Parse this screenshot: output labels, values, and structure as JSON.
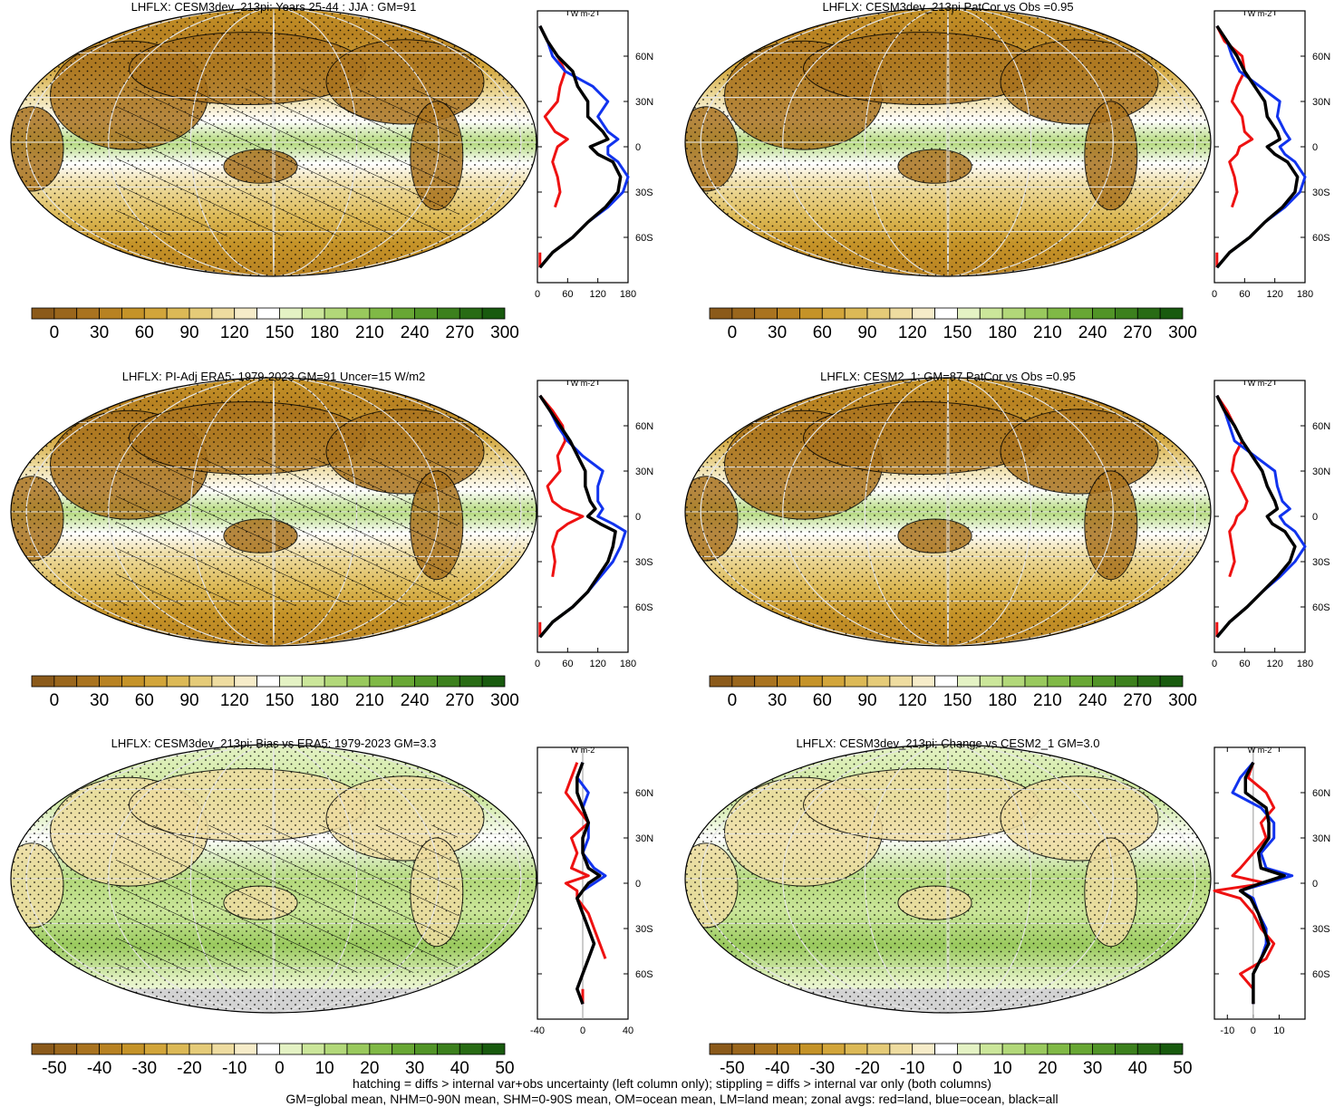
{
  "footer": {
    "line1": "hatching = diffs > internal var+obs uncertainty (left column only); stippling = diffs > internal var only (both columns)",
    "line2": "GM=global mean, NHM=0-90N mean, SHM=0-90S mean, OM=ocean mean, LM=land mean; zonal avgs: red=land, blue=ocean, black=all"
  },
  "colors": {
    "land_zonal": "#ee1111",
    "ocean_zonal": "#1133ee",
    "all_zonal": "#000000",
    "missing_land": "#d3d3d3"
  },
  "colorbars": {
    "abs": {
      "colors": [
        "#8b5a1a",
        "#9a661c",
        "#a9731f",
        "#b88222",
        "#c59328",
        "#d2a53a",
        "#dcb956",
        "#e5cb78",
        "#eedca0",
        "#f6ecc9",
        "#ffffff",
        "#e4f2c4",
        "#cbe69a",
        "#b2d879",
        "#99c95d",
        "#80b946",
        "#68a734",
        "#519427",
        "#3c801d",
        "#286b14",
        "#185a0e"
      ],
      "tick_labels": [
        "0",
        "30",
        "60",
        "90",
        "120",
        "150",
        "180",
        "210",
        "240",
        "270",
        "300"
      ]
    },
    "diff": {
      "colors": [
        "#8b5a1a",
        "#9a661c",
        "#a9731f",
        "#b88222",
        "#c59328",
        "#d2a53a",
        "#dcb956",
        "#e5cb78",
        "#eedca0",
        "#f6ecc9",
        "#ffffff",
        "#e4f2c4",
        "#cbe69a",
        "#b2d879",
        "#99c95d",
        "#80b946",
        "#68a734",
        "#519427",
        "#3c801d",
        "#286b14",
        "#185a0e"
      ],
      "tick_labels": [
        "-50",
        "-40",
        "-30",
        "-20",
        "-10",
        "0",
        "10",
        "20",
        "30",
        "40",
        "50"
      ]
    }
  },
  "chart_data": [
    {
      "type": "heatmap",
      "title": "LHFLX: CESM3dev_213pi: Years 25-44 : JJA : GM=91",
      "colorbar": "abs",
      "hatching": true,
      "stippling": true,
      "zonal": {
        "unit": "W m-2",
        "xlim": [
          0,
          180
        ],
        "xticks": [
          "0",
          "60",
          "120",
          "180"
        ],
        "ylim": [
          -90,
          90
        ],
        "yticks": [
          [
            "60N",
            60
          ],
          [
            "30N",
            30
          ],
          [
            "0",
            0
          ],
          [
            "30S",
            -30
          ],
          [
            "60S",
            -60
          ]
        ],
        "lat": [
          80,
          70,
          60,
          50,
          40,
          30,
          20,
          10,
          5,
          0,
          -5,
          -10,
          -20,
          -30,
          -40,
          -50,
          -60,
          -70,
          -80
        ],
        "land": [
          5,
          20,
          40,
          55,
          45,
          40,
          15,
          35,
          60,
          40,
          35,
          30,
          40,
          45,
          35,
          null,
          null,
          5,
          5
        ],
        "ocean": [
          5,
          20,
          30,
          55,
          110,
          140,
          120,
          140,
          160,
          140,
          140,
          160,
          180,
          170,
          140,
          100,
          70,
          30,
          5
        ],
        "all": [
          5,
          20,
          40,
          70,
          80,
          100,
          100,
          130,
          140,
          105,
          120,
          150,
          165,
          160,
          135,
          100,
          70,
          30,
          5
        ]
      }
    },
    {
      "type": "heatmap",
      "title": "LHFLX: CESM3dev_213pi PatCor vs Obs =0.95",
      "colorbar": "abs",
      "hatching": false,
      "stippling": true,
      "zonal": {
        "unit": "W m-2",
        "xlim": [
          0,
          180
        ],
        "xticks": [
          "0",
          "60",
          "120",
          "180"
        ],
        "ylim": [
          -90,
          90
        ],
        "yticks": [
          [
            "60N",
            60
          ],
          [
            "30N",
            30
          ],
          [
            "0",
            0
          ],
          [
            "30S",
            -30
          ],
          [
            "60S",
            -60
          ]
        ],
        "lat": [
          80,
          70,
          60,
          50,
          40,
          30,
          20,
          10,
          5,
          0,
          -5,
          -10,
          -20,
          -30,
          -40,
          -50,
          -60,
          -70,
          -80
        ],
        "land": [
          5,
          20,
          55,
          60,
          45,
          35,
          55,
          60,
          75,
          50,
          45,
          30,
          40,
          45,
          35,
          null,
          null,
          5,
          5
        ],
        "ocean": [
          5,
          25,
          35,
          50,
          90,
          130,
          125,
          140,
          150,
          130,
          140,
          160,
          180,
          170,
          140,
          100,
          70,
          30,
          5
        ],
        "all": [
          5,
          25,
          45,
          60,
          80,
          100,
          105,
          125,
          130,
          105,
          120,
          145,
          165,
          160,
          135,
          100,
          70,
          30,
          5
        ]
      }
    },
    {
      "type": "heatmap",
      "title": "LHFLX: PI-Adj ERA5: 1979-2023 GM=91 Uncer=15 W/m2",
      "colorbar": "abs",
      "hatching": true,
      "stippling": true,
      "zonal": {
        "unit": "W m-2",
        "xlim": [
          0,
          180
        ],
        "xticks": [
          "0",
          "60",
          "120",
          "180"
        ],
        "ylim": [
          -90,
          90
        ],
        "yticks": [
          [
            "60N",
            60
          ],
          [
            "30N",
            30
          ],
          [
            "0",
            0
          ],
          [
            "30S",
            -30
          ],
          [
            "60S",
            -60
          ]
        ],
        "lat": [
          80,
          70,
          60,
          50,
          40,
          30,
          20,
          10,
          5,
          0,
          -5,
          -10,
          -20,
          -30,
          -40,
          -50,
          -60,
          -70,
          -80
        ],
        "land": [
          5,
          30,
          50,
          55,
          40,
          45,
          20,
          30,
          50,
          90,
          60,
          40,
          30,
          35,
          30,
          null,
          null,
          5,
          5
        ],
        "ocean": [
          5,
          25,
          40,
          60,
          90,
          130,
          120,
          120,
          130,
          120,
          150,
          175,
          165,
          150,
          125,
          100,
          70,
          30,
          5
        ],
        "all": [
          5,
          25,
          45,
          65,
          80,
          95,
          95,
          105,
          115,
          100,
          125,
          155,
          150,
          140,
          120,
          100,
          70,
          30,
          5
        ]
      }
    },
    {
      "type": "heatmap",
      "title": "LHFLX: CESM2_1: GM=87 PatCor vs Obs =0.95",
      "colorbar": "abs",
      "hatching": false,
      "stippling": true,
      "zonal": {
        "unit": "W m-2",
        "xlim": [
          0,
          180
        ],
        "xticks": [
          "0",
          "60",
          "120",
          "180"
        ],
        "ylim": [
          -90,
          90
        ],
        "yticks": [
          [
            "60N",
            60
          ],
          [
            "30N",
            30
          ],
          [
            "0",
            0
          ],
          [
            "30S",
            -30
          ],
          [
            "60S",
            -60
          ]
        ],
        "lat": [
          80,
          70,
          60,
          50,
          40,
          30,
          20,
          10,
          5,
          0,
          -5,
          -10,
          -20,
          -30,
          -40,
          -50,
          -60,
          -70,
          -80
        ],
        "land": [
          5,
          25,
          40,
          55,
          40,
          35,
          50,
          65,
          60,
          45,
          40,
          30,
          35,
          40,
          30,
          null,
          null,
          5,
          5
        ],
        "ocean": [
          5,
          20,
          30,
          40,
          80,
          120,
          125,
          135,
          150,
          130,
          140,
          160,
          180,
          160,
          130,
          95,
          65,
          30,
          5
        ],
        "all": [
          5,
          20,
          40,
          55,
          75,
          95,
          105,
          120,
          125,
          105,
          115,
          140,
          160,
          150,
          125,
          95,
          65,
          30,
          5
        ]
      }
    },
    {
      "type": "heatmap",
      "title": "LHFLX: CESM3dev_213pi: Bias vs ERA5: 1979-2023 GM=3.3",
      "colorbar": "diff",
      "hatching": true,
      "stippling": true,
      "zonal": {
        "unit": "W m-2",
        "xlim": [
          -40,
          40
        ],
        "xticks": [
          "-40",
          "0",
          "40"
        ],
        "ylim": [
          -90,
          90
        ],
        "yticks": [
          [
            "60N",
            60
          ],
          [
            "30N",
            30
          ],
          [
            "0",
            0
          ],
          [
            "30S",
            -30
          ],
          [
            "60S",
            -60
          ]
        ],
        "lat": [
          80,
          70,
          60,
          50,
          40,
          30,
          20,
          10,
          5,
          0,
          -5,
          -10,
          -20,
          -30,
          -40,
          -50,
          -60,
          -70,
          -80
        ],
        "land": [
          -5,
          -10,
          -15,
          -5,
          5,
          -10,
          -5,
          -10,
          5,
          -15,
          -5,
          -5,
          5,
          10,
          15,
          20,
          null,
          0,
          0
        ],
        "ocean": [
          0,
          -5,
          5,
          0,
          5,
          5,
          0,
          10,
          20,
          10,
          0,
          -5,
          0,
          5,
          10,
          5,
          0,
          -5,
          0
        ],
        "all": [
          0,
          -5,
          -5,
          0,
          5,
          0,
          0,
          5,
          15,
          5,
          0,
          -5,
          0,
          5,
          10,
          5,
          0,
          -5,
          0
        ]
      }
    },
    {
      "type": "heatmap",
      "title": "LHFLX: CESM3dev_213pi: Change vs CESM2_1 GM=3.0",
      "colorbar": "diff",
      "hatching": false,
      "stippling": true,
      "zonal": {
        "unit": "W m-2",
        "xlim": [
          -15,
          20
        ],
        "xticks": [
          "-10",
          "0",
          "10"
        ],
        "ylim": [
          -90,
          90
        ],
        "yticks": [
          [
            "60N",
            60
          ],
          [
            "30N",
            30
          ],
          [
            "0",
            0
          ],
          [
            "30S",
            -30
          ],
          [
            "60S",
            -60
          ]
        ],
        "lat": [
          80,
          70,
          60,
          50,
          40,
          30,
          20,
          10,
          5,
          0,
          -5,
          -10,
          -20,
          -30,
          -40,
          -50,
          -60,
          -70,
          -80
        ],
        "land": [
          0,
          -2,
          5,
          8,
          3,
          5,
          0,
          -5,
          -8,
          5,
          -15,
          -5,
          0,
          3,
          8,
          5,
          -5,
          0,
          0
        ],
        "ocean": [
          0,
          -5,
          -8,
          3,
          8,
          8,
          3,
          5,
          15,
          5,
          -5,
          0,
          2,
          5,
          5,
          3,
          0,
          0,
          0
        ],
        "all": [
          0,
          -3,
          -3,
          5,
          6,
          6,
          2,
          3,
          12,
          3,
          -5,
          -1,
          2,
          4,
          6,
          3,
          0,
          0,
          0
        ]
      }
    }
  ]
}
